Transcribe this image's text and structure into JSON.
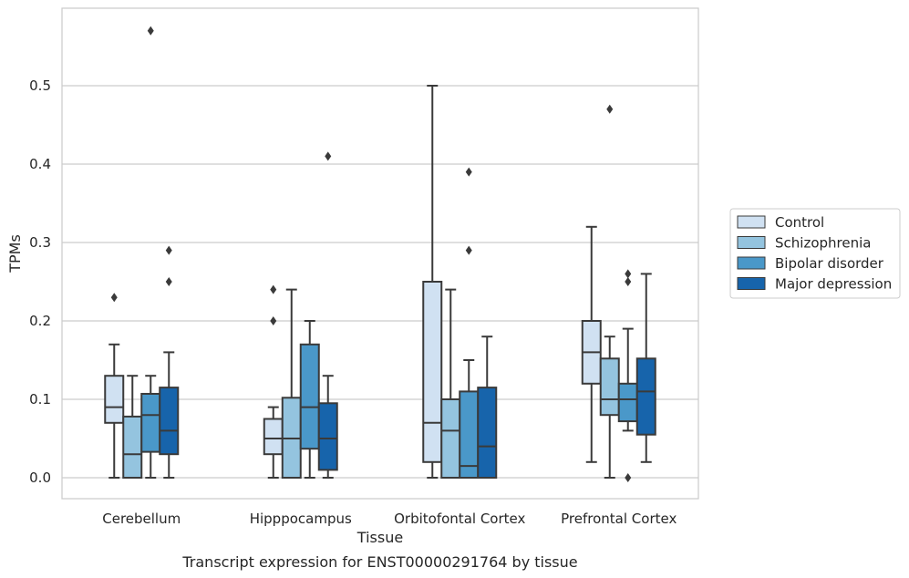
{
  "caption": "Transcript expression for ENST00000291764 by tissue",
  "chart_data": {
    "type": "box",
    "xlabel": "Tissue",
    "ylabel": "TPMs",
    "ylim": [
      -0.028,
      0.6
    ],
    "yticks": [
      0.0,
      0.1,
      0.2,
      0.3,
      0.4,
      0.5
    ],
    "ytick_labels": [
      "0.0",
      "0.1",
      "0.2",
      "0.3",
      "0.4",
      "0.5"
    ],
    "grid": true,
    "legend_position": "right",
    "categories": [
      "Cerebellum",
      "Hipppocampus",
      "Orbitofontal Cortex",
      "Prefrontal Cortex"
    ],
    "series": [
      {
        "name": "Control",
        "color": "#d0e1f2",
        "boxes": [
          {
            "whislo": 0.0,
            "q1": 0.07,
            "med": 0.09,
            "q3": 0.13,
            "whishi": 0.17,
            "fliers": [
              0.23
            ]
          },
          {
            "whislo": 0.0,
            "q1": 0.03,
            "med": 0.05,
            "q3": 0.075,
            "whishi": 0.09,
            "fliers": [
              0.2,
              0.24
            ]
          },
          {
            "whislo": 0.0,
            "q1": 0.02,
            "med": 0.07,
            "q3": 0.25,
            "whishi": 0.5,
            "fliers": []
          },
          {
            "whislo": 0.02,
            "q1": 0.12,
            "med": 0.16,
            "q3": 0.2,
            "whishi": 0.32,
            "fliers": []
          }
        ]
      },
      {
        "name": "Schizophrenia",
        "color": "#94c4df",
        "boxes": [
          {
            "whislo": 0.0,
            "q1": 0.0,
            "med": 0.03,
            "q3": 0.078,
            "whishi": 0.13,
            "fliers": []
          },
          {
            "whislo": 0.0,
            "q1": 0.0,
            "med": 0.05,
            "q3": 0.102,
            "whishi": 0.24,
            "fliers": []
          },
          {
            "whislo": 0.0,
            "q1": 0.0,
            "med": 0.06,
            "q3": 0.1,
            "whishi": 0.24,
            "fliers": []
          },
          {
            "whislo": 0.0,
            "q1": 0.08,
            "med": 0.1,
            "q3": 0.152,
            "whishi": 0.18,
            "fliers": [
              0.47
            ]
          }
        ]
      },
      {
        "name": "Bipolar disorder",
        "color": "#4a98c9",
        "boxes": [
          {
            "whislo": 0.0,
            "q1": 0.033,
            "med": 0.08,
            "q3": 0.107,
            "whishi": 0.13,
            "fliers": [
              0.57
            ]
          },
          {
            "whislo": 0.0,
            "q1": 0.037,
            "med": 0.09,
            "q3": 0.17,
            "whishi": 0.2,
            "fliers": []
          },
          {
            "whislo": 0.0,
            "q1": 0.0,
            "med": 0.015,
            "q3": 0.11,
            "whishi": 0.15,
            "fliers": [
              0.29,
              0.39
            ]
          },
          {
            "whislo": 0.06,
            "q1": 0.072,
            "med": 0.1,
            "q3": 0.12,
            "whishi": 0.19,
            "fliers": [
              0.0,
              0.25,
              0.26
            ]
          }
        ]
      },
      {
        "name": "Major depression",
        "color": "#1764ab",
        "boxes": [
          {
            "whislo": 0.0,
            "q1": 0.03,
            "med": 0.06,
            "q3": 0.115,
            "whishi": 0.16,
            "fliers": [
              0.25,
              0.29
            ]
          },
          {
            "whislo": 0.0,
            "q1": 0.01,
            "med": 0.05,
            "q3": 0.095,
            "whishi": 0.13,
            "fliers": [
              0.41
            ]
          },
          {
            "whislo": 0.0,
            "q1": 0.0,
            "med": 0.04,
            "q3": 0.115,
            "whishi": 0.18,
            "fliers": []
          },
          {
            "whislo": 0.02,
            "q1": 0.055,
            "med": 0.11,
            "q3": 0.152,
            "whishi": 0.26,
            "fliers": []
          }
        ]
      }
    ]
  }
}
